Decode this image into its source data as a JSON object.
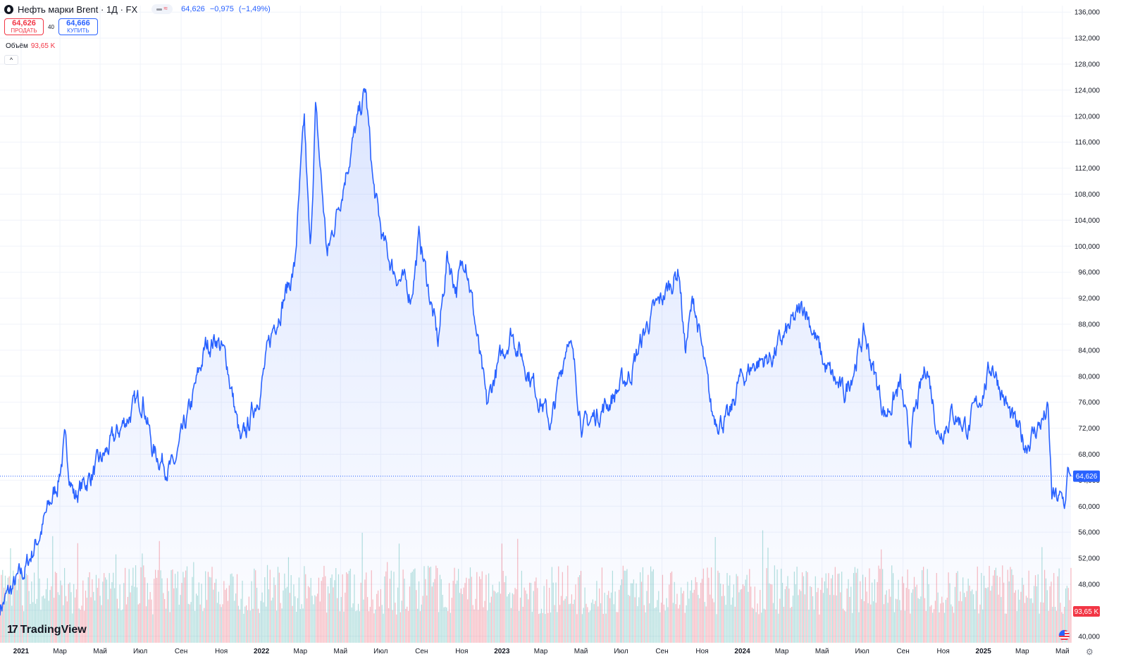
{
  "header": {
    "title": "Нефть марки Brent · 1Д · FX",
    "price": "64,626",
    "change": "−0,975",
    "change_pct": "(−1,49%)"
  },
  "trade": {
    "sell_price": "64,626",
    "sell_label": "ПРОДАТЬ",
    "spread": "40",
    "buy_price": "64,666",
    "buy_label": "КУПИТЬ"
  },
  "volume_legend": {
    "label": "Объём",
    "value": "93,65 K"
  },
  "logo_text": "TradingView",
  "colors": {
    "line": "#2962ff",
    "vol_up": "#26a69a",
    "vol_down": "#f23645",
    "accent": "#2962ff"
  },
  "icons": {
    "symbol": "brent-drop-icon",
    "collapse": "chevron-up-icon",
    "flag": "us-flag-icon",
    "settings": "gear-icon"
  },
  "chart_data": {
    "type": "area",
    "x_range": [
      "2020-11-30",
      "2025-05-14"
    ],
    "y_range": [
      39000,
      137000
    ],
    "y_scale": "linear",
    "grid": true,
    "ytick_labels": [
      "40,000",
      "44,000",
      "48,000",
      "52,000",
      "56,000",
      "60,000",
      "64,000",
      "68,000",
      "72,000",
      "76,000",
      "80,000",
      "84,000",
      "88,000",
      "92,000",
      "96,000",
      "100,000",
      "104,000",
      "108,000",
      "112,000",
      "116,000",
      "120,000",
      "124,000",
      "128,000",
      "132,000",
      "136,000"
    ],
    "ytick_values": [
      40000,
      44000,
      48000,
      52000,
      56000,
      60000,
      64000,
      68000,
      72000,
      76000,
      80000,
      84000,
      88000,
      92000,
      96000,
      100000,
      104000,
      108000,
      112000,
      116000,
      120000,
      124000,
      128000,
      132000,
      136000
    ],
    "xtick_labels": [
      "2021",
      "Мар",
      "Май",
      "Июл",
      "Сен",
      "Ноя",
      "2022",
      "Мар",
      "Май",
      "Июл",
      "Сен",
      "Ноя",
      "2023",
      "Мар",
      "Май",
      "Июл",
      "Сен",
      "Ноя",
      "2024",
      "Мар",
      "Май",
      "Июл",
      "Сен",
      "Ноя",
      "2025",
      "Мар",
      "Май"
    ],
    "xtick_dates": [
      "2021-01-01",
      "2021-03-01",
      "2021-05-01",
      "2021-07-01",
      "2021-09-01",
      "2021-11-01",
      "2022-01-01",
      "2022-03-01",
      "2022-05-01",
      "2022-07-01",
      "2022-09-01",
      "2022-11-01",
      "2023-01-01",
      "2023-03-01",
      "2023-05-01",
      "2023-07-01",
      "2023-09-01",
      "2023-11-01",
      "2024-01-01",
      "2024-03-01",
      "2024-05-01",
      "2024-07-01",
      "2024-09-01",
      "2024-11-01",
      "2025-01-01",
      "2025-03-01",
      "2025-05-01"
    ],
    "series": [
      {
        "x": [
          "2020-11-30",
          "2021-01-06",
          "2021-02-03",
          "2021-02-25",
          "2021-03-08",
          "2021-03-23",
          "2021-04-30",
          "2021-05-18",
          "2021-06-10",
          "2021-07-05",
          "2021-07-20",
          "2021-08-20",
          "2021-09-15",
          "2021-10-08",
          "2021-10-25",
          "2021-11-10",
          "2021-12-01",
          "2021-12-31",
          "2022-01-20",
          "2022-02-20",
          "2022-03-07",
          "2022-03-16",
          "2022-03-24",
          "2022-04-11",
          "2022-05-10",
          "2022-06-08",
          "2022-06-20",
          "2022-07-05",
          "2022-07-20",
          "2022-08-16",
          "2022-08-29",
          "2022-09-26",
          "2022-10-10",
          "2022-10-24",
          "2022-11-07",
          "2022-12-09",
          "2022-12-21",
          "2023-01-15",
          "2023-03-17",
          "2023-04-12",
          "2023-05-04",
          "2023-06-12",
          "2023-07-15",
          "2023-08-10",
          "2023-09-27",
          "2023-10-06",
          "2023-10-19",
          "2023-11-16",
          "2023-12-12",
          "2023-12-26",
          "2024-01-20",
          "2024-02-15",
          "2024-04-05",
          "2024-05-05",
          "2024-06-04",
          "2024-07-04",
          "2024-08-05",
          "2024-08-28",
          "2024-09-10",
          "2024-10-07",
          "2024-10-25",
          "2024-11-15",
          "2024-12-10",
          "2025-01-15",
          "2025-02-10",
          "2025-03-05",
          "2025-03-20",
          "2025-04-09",
          "2025-04-15",
          "2025-05-05",
          "2025-05-09",
          "2025-05-14"
        ],
        "values": [
          44500,
          50000,
          57000,
          63500,
          69500,
          61500,
          66500,
          69500,
          73500,
          77000,
          68500,
          65500,
          75000,
          84500,
          86000,
          82000,
          69000,
          78500,
          88000,
          96500,
          119000,
          98500,
          121000,
          98500,
          112000,
          124000,
          109000,
          100500,
          96500,
          92500,
          101500,
          85000,
          98500,
          93500,
          99000,
          75000,
          80000,
          87000,
          72500,
          87000,
          72000,
          76000,
          80500,
          88000,
          96500,
          84000,
          92000,
          74000,
          73000,
          79000,
          82000,
          83000,
          91000,
          81500,
          77000,
          86500,
          74000,
          78500,
          70000,
          82000,
          71000,
          74500,
          72000,
          82000,
          74000,
          69500,
          71500,
          74500,
          61500,
          60500,
          65500,
          64626
        ]
      }
    ],
    "current_value": "64,626",
    "volume": {
      "shown": true,
      "last_value": "93,65 K"
    }
  }
}
